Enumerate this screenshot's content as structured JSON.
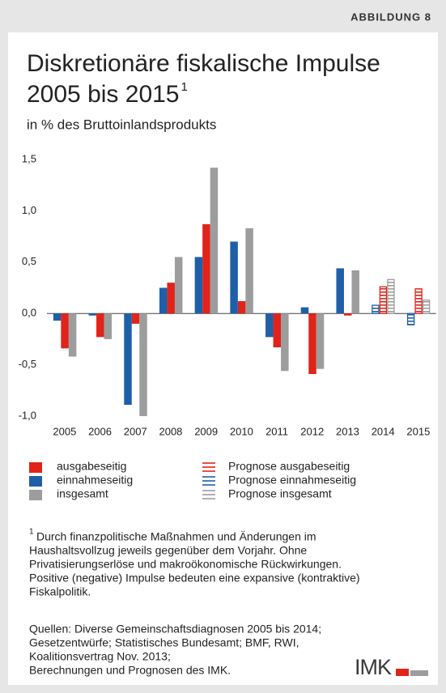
{
  "figure_label": "ABBILDUNG 8",
  "chart_data": {
    "type": "bar",
    "title_lines": [
      "Diskretionäre fiskalische Impulse",
      "2005 bis 2015"
    ],
    "title_footnote_mark": "1",
    "subtitle": "in % des Bruttoinlandsprodukts",
    "categories": [
      "2005",
      "2006",
      "2007",
      "2008",
      "2009",
      "2010",
      "2011",
      "2012",
      "2013",
      "2014",
      "2015"
    ],
    "series": [
      {
        "name": "ausgabeseitig",
        "color": "#e2231a",
        "pattern": "solid",
        "values": [
          -0.34,
          -0.23,
          -0.1,
          0.3,
          0.87,
          0.12,
          -0.33,
          -0.59,
          -0.02,
          null,
          null
        ]
      },
      {
        "name": "einnahmeseitig",
        "color": "#1f5fa8",
        "pattern": "solid",
        "values": [
          -0.07,
          -0.02,
          -0.89,
          0.25,
          0.55,
          0.7,
          -0.23,
          0.06,
          0.44,
          null,
          null
        ]
      },
      {
        "name": "insgesamt",
        "color": "#9d9d9d",
        "pattern": "solid",
        "values": [
          -0.42,
          -0.25,
          -1.0,
          0.55,
          1.42,
          0.83,
          -0.56,
          -0.54,
          0.42,
          null,
          null
        ]
      },
      {
        "name": "Prognose ausgabeseitig",
        "color": "#e2231a",
        "pattern": "striped",
        "values": [
          null,
          null,
          null,
          null,
          null,
          null,
          null,
          null,
          null,
          0.26,
          0.24
        ]
      },
      {
        "name": "Prognose einnahmeseitig",
        "color": "#1f5fa8",
        "pattern": "striped",
        "values": [
          null,
          null,
          null,
          null,
          null,
          null,
          null,
          null,
          null,
          0.08,
          -0.11
        ]
      },
      {
        "name": "Prognose insgesamt",
        "color": "#9d9d9d",
        "pattern": "striped",
        "values": [
          null,
          null,
          null,
          null,
          null,
          null,
          null,
          null,
          null,
          0.33,
          0.13
        ]
      }
    ],
    "ylim": [
      -1.0,
      1.5
    ],
    "yticks": [
      {
        "value": 1.5,
        "label": "1,5"
      },
      {
        "value": 1.0,
        "label": "1,0"
      },
      {
        "value": 0.5,
        "label": "0,5"
      },
      {
        "value": 0.0,
        "label": "0,0"
      },
      {
        "value": -0.5,
        "label": "-0,5"
      },
      {
        "value": -1.0,
        "label": "-1,0"
      }
    ],
    "grid": false
  },
  "footnote": {
    "mark": "1",
    "lines": [
      "Durch finanzpolitische Maßnahmen und Änderungen im",
      "Haushaltsvollzug jeweils gegenüber dem Vorjahr. Ohne",
      "Privatisierungserlöse und makroökonomische Rückwirkungen.",
      "Positive (negative) Impulse bedeuten eine expansive (kontraktive)",
      "Fiskalpolitik."
    ]
  },
  "sources": [
    "Quellen: Diverse Gemeinschaftsdiagnosen 2005 bis 2014;",
    "Gesetzentwürfe; Statistisches Bundesamt; BMF, RWI,",
    "Koalitionsvertrag Nov. 2013;",
    "Berechnungen und Prognosen des IMK."
  ],
  "logo": "IMK"
}
